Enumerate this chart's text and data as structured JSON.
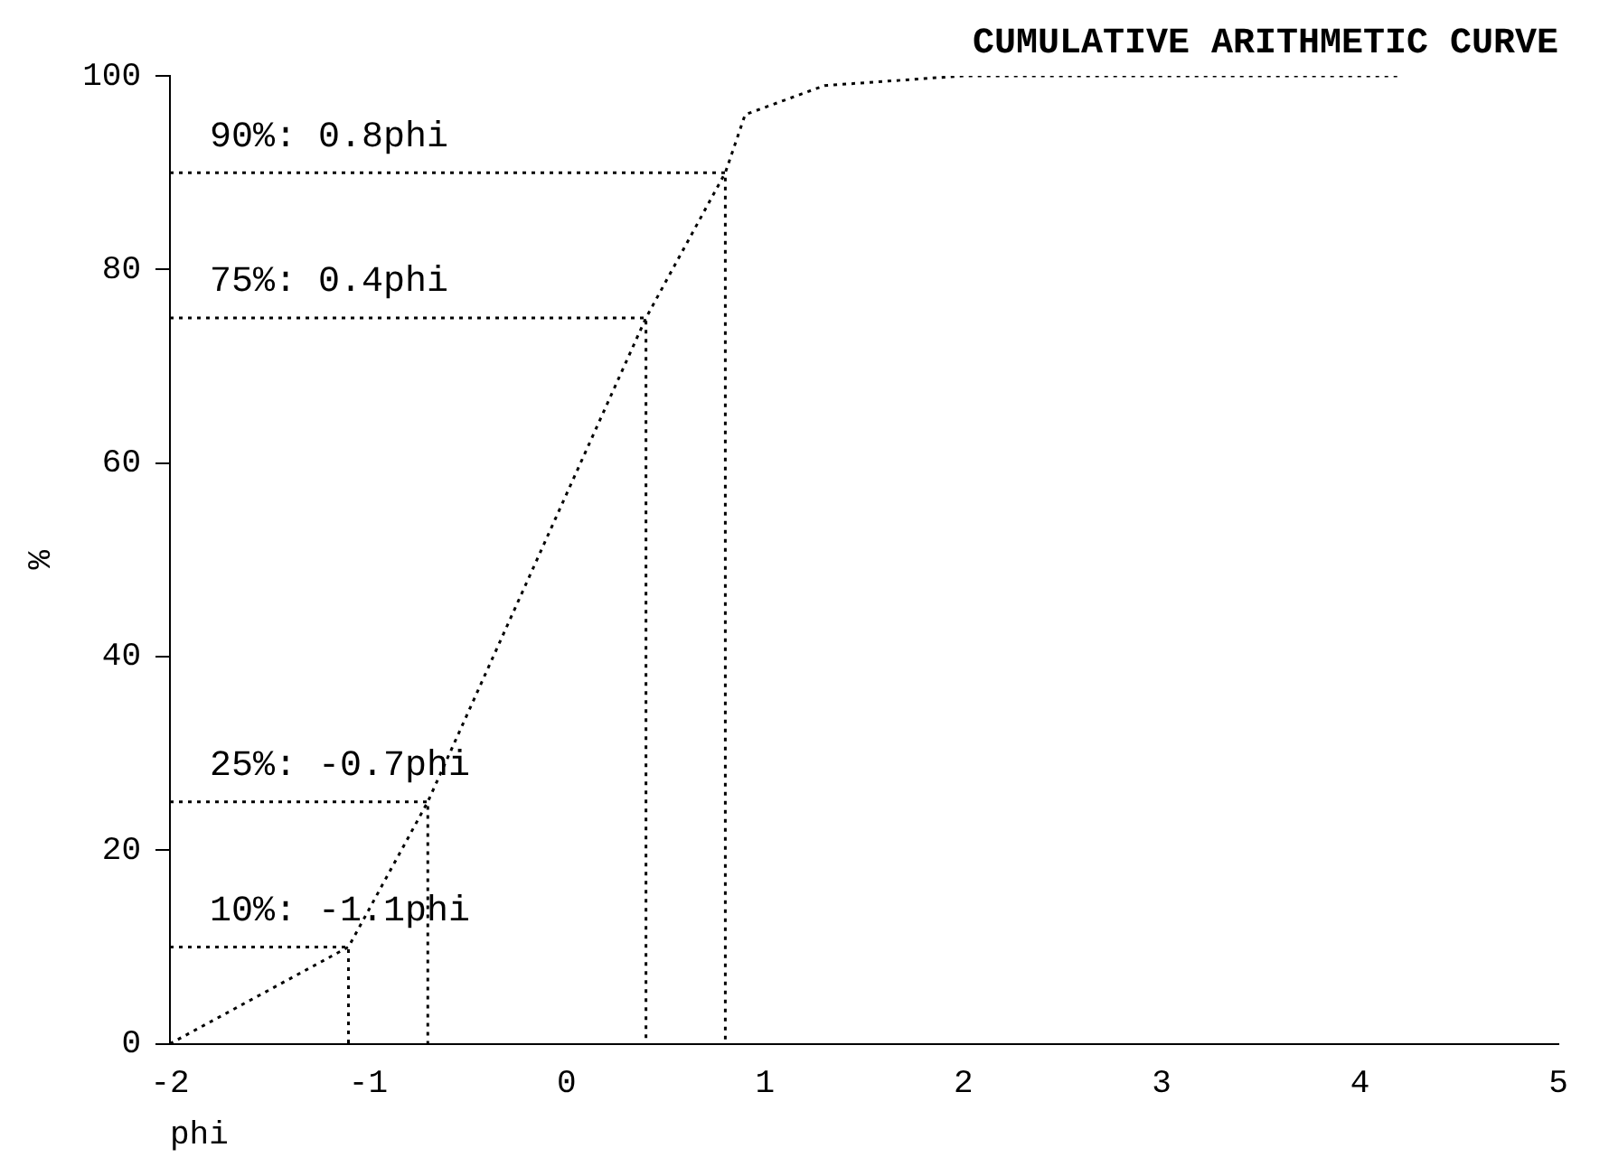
{
  "chart_data": {
    "type": "line",
    "title": "CUMULATIVE ARITHMETIC CURVE",
    "xlabel": "phi",
    "ylabel": "%",
    "x": [
      -2,
      -1.1,
      -0.7,
      0.4,
      0.8,
      0.9,
      1.3,
      2,
      4.2
    ],
    "series": [
      {
        "color": "#000000",
        "values": [
          0,
          10,
          25,
          75,
          90,
          96,
          99,
          100,
          100
        ]
      },
      {
        "color": "#000000",
        "x": [
          -2,
          0.8,
          0.8
        ],
        "values": [
          90,
          90,
          0
        ]
      },
      {
        "color": "#000000",
        "x": [
          -2,
          0.4,
          0.4
        ],
        "values": [
          75,
          75,
          0
        ]
      },
      {
        "color": "#000000",
        "x": [
          -2,
          -0.7,
          -0.7
        ],
        "values": [
          25,
          25,
          0
        ]
      },
      {
        "color": "#000000",
        "x": [
          -2,
          -1.1,
          -1.1
        ],
        "values": [
          10,
          10,
          0
        ]
      }
    ],
    "xlim": [
      -2,
      5
    ],
    "xticks": [
      -2,
      -1,
      0,
      1,
      2,
      3,
      4,
      5
    ],
    "ylim": [
      0,
      100
    ],
    "yticks": [
      0,
      20,
      40,
      60,
      80,
      100
    ],
    "grid": false,
    "legend": false,
    "marker": "none",
    "line_style": "dotted",
    "annotations": [
      "90%: 0.8phi",
      "75%: 0.4phi",
      "25%: -0.7phi",
      "10%: -1.1phi"
    ]
  }
}
